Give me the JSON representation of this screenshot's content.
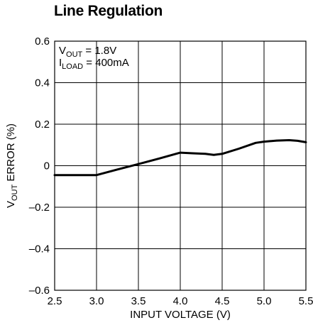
{
  "chart_data": {
    "type": "line",
    "title": "Line Regulation",
    "xlabel": "INPUT VOLTAGE (V)",
    "ylabel": {
      "main": "V",
      "sub": "OUT",
      "rest": " ERROR (%)"
    },
    "xlim": [
      2.5,
      5.5
    ],
    "ylim": [
      -0.6,
      0.6
    ],
    "x_ticks": [
      2.5,
      3.0,
      3.5,
      4.0,
      4.5,
      5.0,
      5.5
    ],
    "x_tick_labels": [
      "2.5",
      "3.0",
      "3.5",
      "4.0",
      "4.5",
      "5.0",
      "5.5"
    ],
    "y_ticks": [
      -0.6,
      -0.4,
      -0.2,
      0,
      0.2,
      0.4,
      0.6
    ],
    "y_tick_labels": [
      "–0.6",
      "–0.4",
      "–0.2",
      "0",
      "0.2",
      "0.4",
      "0.6"
    ],
    "grid": true,
    "annotations": [
      {
        "main": "V",
        "sub": "OUT",
        "rest": " = 1.8V"
      },
      {
        "main": "I",
        "sub": "LOAD",
        "rest": " = 400mA"
      }
    ],
    "series": [
      {
        "x": [
          2.5,
          2.75,
          3.0,
          3.25,
          3.5,
          3.75,
          4.0,
          4.15,
          4.3,
          4.4,
          4.5,
          4.7,
          4.9,
          5.0,
          5.15,
          5.3,
          5.4,
          5.5
        ],
        "y": [
          -0.045,
          -0.045,
          -0.045,
          -0.018,
          0.008,
          0.035,
          0.063,
          0.06,
          0.057,
          0.052,
          0.057,
          0.082,
          0.11,
          0.116,
          0.121,
          0.123,
          0.12,
          0.113
        ]
      }
    ]
  }
}
